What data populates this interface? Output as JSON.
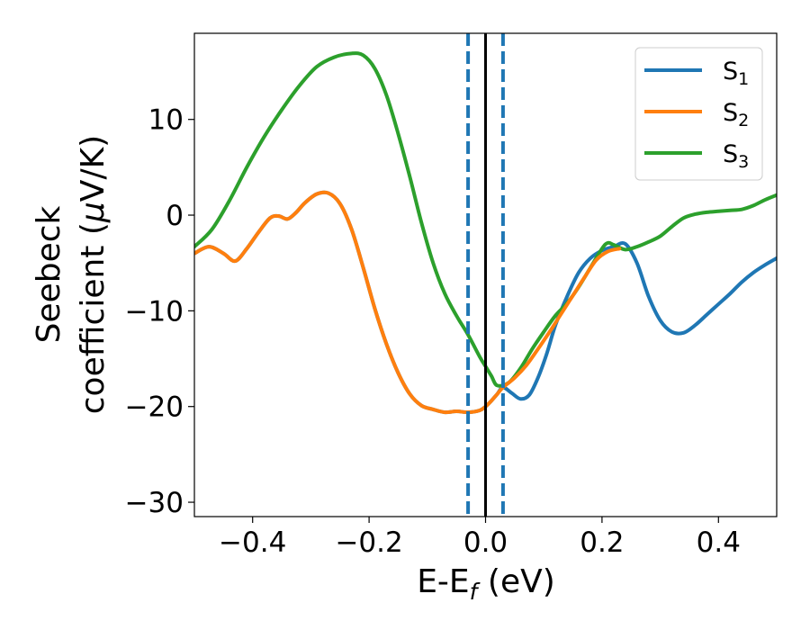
{
  "chart_data": {
    "type": "line",
    "title": "",
    "xlabel_main": "E-E",
    "xlabel_sub": "f",
    "xlabel_unit": " (eV)",
    "ylabel_line1": "Seebeck",
    "ylabel_line2_prefix": "coefficient  (",
    "ylabel_mu": "μ",
    "ylabel_line2_suffix": "V/K)",
    "xlim": [
      -0.5,
      0.5
    ],
    "ylim": [
      -31.5,
      19
    ],
    "xticks": [
      {
        "value": -0.4,
        "label": "−0.4"
      },
      {
        "value": -0.2,
        "label": "−0.2"
      },
      {
        "value": 0.0,
        "label": "0.0"
      },
      {
        "value": 0.2,
        "label": "0.2"
      },
      {
        "value": 0.4,
        "label": "0.4"
      }
    ],
    "yticks": [
      {
        "value": -30,
        "label": "−30"
      },
      {
        "value": -20,
        "label": "−20"
      },
      {
        "value": -10,
        "label": "−10"
      },
      {
        "value": 0,
        "label": "0"
      },
      {
        "value": 10,
        "label": "10"
      }
    ],
    "vlines": [
      {
        "x": -0.03,
        "style": "dashed",
        "color": "#1f77b4"
      },
      {
        "x": 0.0,
        "style": "solid",
        "color": "#000000"
      },
      {
        "x": 0.03,
        "style": "dashed",
        "color": "#1f77b4"
      }
    ],
    "legend": {
      "position": "top-right"
    },
    "series": [
      {
        "name": "S",
        "sub": "1",
        "color": "#1f77b4",
        "x": [
          -0.5,
          -0.475,
          -0.45,
          -0.43,
          -0.41,
          -0.39,
          -0.37,
          -0.355,
          -0.34,
          -0.325,
          -0.31,
          -0.29,
          -0.27,
          -0.25,
          -0.23,
          -0.21,
          -0.19,
          -0.17,
          -0.15,
          -0.13,
          -0.11,
          -0.09,
          -0.07,
          -0.05,
          -0.03,
          -0.01,
          0.0,
          0.01,
          0.02,
          0.03,
          0.045,
          0.06,
          0.075,
          0.09,
          0.105,
          0.12,
          0.14,
          0.16,
          0.18,
          0.2,
          0.22,
          0.24,
          0.26,
          0.28,
          0.3,
          0.32,
          0.34,
          0.36,
          0.38,
          0.4,
          0.42,
          0.44,
          0.46,
          0.48,
          0.5
        ],
        "y": [
          -4,
          -3.3,
          -4,
          -4.8,
          -3.5,
          -1.8,
          -0.3,
          -0.1,
          -0.4,
          0.3,
          1.3,
          2.2,
          2.3,
          1.2,
          -1.5,
          -5.5,
          -9.8,
          -13.5,
          -16.5,
          -18.7,
          -19.9,
          -20.3,
          -20.6,
          -20.5,
          -20.6,
          -20.4,
          -20,
          -19.4,
          -18.7,
          -18,
          -18.6,
          -19.2,
          -18.8,
          -17,
          -14.5,
          -11.5,
          -8.5,
          -6,
          -4.5,
          -3.7,
          -3.3,
          -3,
          -5,
          -8.5,
          -11,
          -12.2,
          -12.3,
          -11.5,
          -10.4,
          -9.3,
          -8.2,
          -7,
          -6,
          -5.2,
          -4.5
        ]
      },
      {
        "name": "S",
        "sub": "2",
        "color": "#ff7f0e",
        "x": [
          -0.5,
          -0.475,
          -0.45,
          -0.43,
          -0.41,
          -0.39,
          -0.37,
          -0.355,
          -0.34,
          -0.325,
          -0.31,
          -0.29,
          -0.27,
          -0.25,
          -0.23,
          -0.21,
          -0.19,
          -0.17,
          -0.15,
          -0.13,
          -0.11,
          -0.09,
          -0.07,
          -0.05,
          -0.03,
          -0.01,
          0.0,
          0.01,
          0.02,
          0.03,
          0.05,
          0.07,
          0.09,
          0.11,
          0.13,
          0.15,
          0.17,
          0.19,
          0.21,
          0.23
        ],
        "y": [
          -4,
          -3.3,
          -4,
          -4.8,
          -3.5,
          -1.8,
          -0.3,
          -0.1,
          -0.4,
          0.3,
          1.3,
          2.2,
          2.3,
          1.2,
          -1.5,
          -5.5,
          -9.8,
          -13.5,
          -16.5,
          -18.7,
          -19.9,
          -20.3,
          -20.6,
          -20.5,
          -20.6,
          -20.4,
          -20,
          -19.4,
          -18.7,
          -18,
          -17,
          -15.7,
          -14,
          -12.2,
          -10.3,
          -8.4,
          -6.5,
          -4.7,
          -3.8,
          -3.5
        ]
      },
      {
        "name": "S",
        "sub": "3",
        "color": "#2ca02c",
        "x": [
          -0.5,
          -0.47,
          -0.44,
          -0.41,
          -0.38,
          -0.35,
          -0.32,
          -0.29,
          -0.26,
          -0.23,
          -0.21,
          -0.19,
          -0.17,
          -0.15,
          -0.13,
          -0.11,
          -0.09,
          -0.07,
          -0.05,
          -0.03,
          -0.01,
          0.0,
          0.01,
          0.02,
          0.04,
          0.06,
          0.08,
          0.1,
          0.12,
          0.14,
          0.16,
          0.18,
          0.2,
          0.21,
          0.22,
          0.24,
          0.26,
          0.28,
          0.3,
          0.32,
          0.34,
          0.36,
          0.38,
          0.4,
          0.42,
          0.44,
          0.46,
          0.48,
          0.5
        ],
        "y": [
          -3.3,
          -1.5,
          1.5,
          5,
          8.2,
          11,
          13.5,
          15.5,
          16.5,
          16.9,
          16.7,
          15.3,
          12.5,
          8.5,
          4,
          -0.8,
          -5,
          -8.2,
          -10.5,
          -12.5,
          -14.8,
          -15.8,
          -16.8,
          -17.8,
          -17.5,
          -16,
          -14,
          -12.2,
          -10.5,
          -9.2,
          -7.5,
          -5.5,
          -3.5,
          -2.9,
          -3.1,
          -3.6,
          -3.3,
          -2.8,
          -2.2,
          -1.2,
          -0.3,
          0.1,
          0.3,
          0.4,
          0.5,
          0.6,
          1,
          1.6,
          2.1
        ]
      }
    ]
  }
}
